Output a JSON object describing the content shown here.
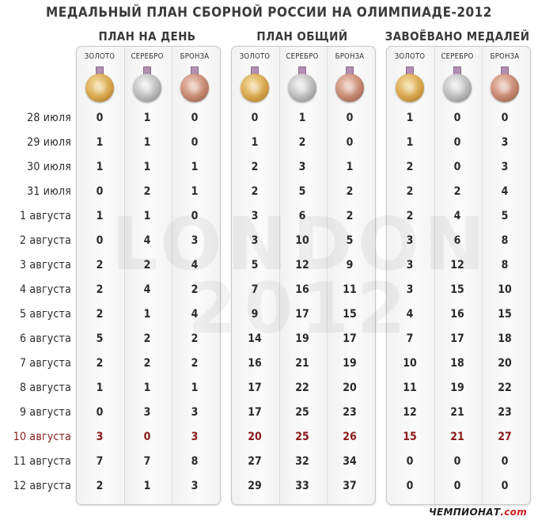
{
  "title": "МЕДАЛЬНЫЙ ПЛАН СБОРНОЙ РОССИИ НА ОЛИМПИАДЕ-2012",
  "groups": [
    {
      "title": "ПЛАН НА ДЕНЬ"
    },
    {
      "title": "ПЛАН ОБЩИЙ"
    },
    {
      "title": "ЗАВОЁВАНО МЕДАЛЕЙ"
    }
  ],
  "medal_labels": [
    "ЗОЛОТО",
    "СЕРЕБРО",
    "БРОНЗА"
  ],
  "watermark": {
    "line1": "LONDON",
    "line2": "2012"
  },
  "brand": {
    "name": "ЧЕМПИОНАТ",
    "suffix": ".com"
  },
  "highlight_row_index": 13,
  "colors": {
    "highlight": "#8b1a1a",
    "gold": "#d7a54b",
    "silver": "#b9b9b9",
    "bronze": "#c4876f",
    "ribbon": "#b38fb2"
  },
  "rows": [
    {
      "date": "28 июля",
      "day": [
        "0",
        "1",
        "0"
      ],
      "total": [
        "0",
        "1",
        "0"
      ],
      "won": [
        "1",
        "0",
        "0"
      ]
    },
    {
      "date": "29 июля",
      "day": [
        "1",
        "1",
        "0"
      ],
      "total": [
        "1",
        "2",
        "0"
      ],
      "won": [
        "1",
        "0",
        "3"
      ]
    },
    {
      "date": "30 июля",
      "day": [
        "1",
        "1",
        "1"
      ],
      "total": [
        "2",
        "3",
        "1"
      ],
      "won": [
        "2",
        "0",
        "3"
      ]
    },
    {
      "date": "31 июля",
      "day": [
        "0",
        "2",
        "1"
      ],
      "total": [
        "2",
        "5",
        "2"
      ],
      "won": [
        "2",
        "2",
        "4"
      ]
    },
    {
      "date": "1 августа",
      "day": [
        "1",
        "1",
        "0"
      ],
      "total": [
        "3",
        "6",
        "2"
      ],
      "won": [
        "2",
        "4",
        "5"
      ]
    },
    {
      "date": "2 августа",
      "day": [
        "0",
        "4",
        "3"
      ],
      "total": [
        "3",
        "10",
        "5"
      ],
      "won": [
        "3",
        "6",
        "8"
      ]
    },
    {
      "date": "3 августа",
      "day": [
        "2",
        "2",
        "4"
      ],
      "total": [
        "5",
        "12",
        "9"
      ],
      "won": [
        "3",
        "12",
        "8"
      ]
    },
    {
      "date": "4 августа",
      "day": [
        "2",
        "4",
        "2"
      ],
      "total": [
        "7",
        "16",
        "11"
      ],
      "won": [
        "3",
        "15",
        "10"
      ]
    },
    {
      "date": "5 августа",
      "day": [
        "2",
        "1",
        "4"
      ],
      "total": [
        "9",
        "17",
        "15"
      ],
      "won": [
        "4",
        "16",
        "15"
      ]
    },
    {
      "date": "6 августа",
      "day": [
        "5",
        "2",
        "2"
      ],
      "total": [
        "14",
        "19",
        "17"
      ],
      "won": [
        "7",
        "17",
        "18"
      ]
    },
    {
      "date": "7 августа",
      "day": [
        "2",
        "2",
        "2"
      ],
      "total": [
        "16",
        "21",
        "19"
      ],
      "won": [
        "10",
        "18",
        "20"
      ]
    },
    {
      "date": "8 августа",
      "day": [
        "1",
        "1",
        "1"
      ],
      "total": [
        "17",
        "22",
        "20"
      ],
      "won": [
        "11",
        "19",
        "22"
      ]
    },
    {
      "date": "9 августа",
      "day": [
        "0",
        "3",
        "3"
      ],
      "total": [
        "17",
        "25",
        "23"
      ],
      "won": [
        "12",
        "21",
        "23"
      ]
    },
    {
      "date": "10 августа",
      "day": [
        "3",
        "0",
        "3"
      ],
      "total": [
        "20",
        "25",
        "26"
      ],
      "won": [
        "15",
        "21",
        "27"
      ]
    },
    {
      "date": "11 августа",
      "day": [
        "7",
        "7",
        "8"
      ],
      "total": [
        "27",
        "32",
        "34"
      ],
      "won": [
        "0",
        "0",
        "0"
      ]
    },
    {
      "date": "12 августа",
      "day": [
        "2",
        "1",
        "3"
      ],
      "total": [
        "29",
        "33",
        "37"
      ],
      "won": [
        "0",
        "0",
        "0"
      ]
    }
  ]
}
